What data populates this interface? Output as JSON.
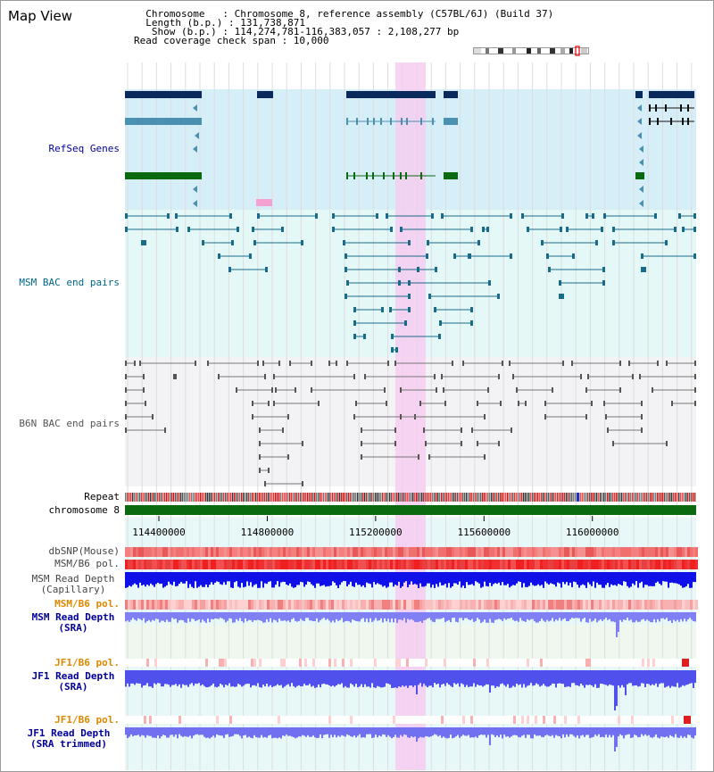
{
  "title": "Map View",
  "info": {
    "line1": "  Chromosome   : Chromosome 8, reference assembly (C57BL/6J) (Build 37)",
    "line2": "  Length (b.p.) : 131,738,871",
    "line3": "   Show (b.p.) : 114,274,781-116,383,057 : 2,108,277 bp",
    "line4": "Read coverage check span : 10,000"
  },
  "tracks": {
    "refseq": "RefSeq Genes",
    "msm_bac": "MSM BAC end pairs",
    "b6n_bac": "B6N BAC end pairs",
    "repeat": "Repeat",
    "chromosome": "chromosome 8",
    "dbsnp": "dbSNP(Mouse)",
    "msm_b6_pol": "MSM/B6 pol.",
    "msm_depth_cap_1": "MSM Read Depth",
    "msm_depth_cap_2": "(Capillary)",
    "msm_b6_pol2": "MSM/B6 pol.",
    "msm_depth_sra_1": "MSM Read Depth",
    "msm_depth_sra_2": "(SRA)",
    "jf1_pol1": "JF1/B6 pol.",
    "jf1_depth_sra_1": "JF1 Read Depth",
    "jf1_depth_sra_2": "(SRA)",
    "jf1_pol2": "JF1/B6 pol.",
    "jf1_depth_trim_1": "JF1 Read Depth",
    "jf1_depth_trim_2": "(SRA trimmed)"
  },
  "axis": {
    "ticks": [
      "114400000",
      "114800000",
      "115200000",
      "115600000",
      "116000000"
    ],
    "tick_values": [
      114400000,
      114800000,
      115200000,
      115600000,
      116000000
    ],
    "view_start": 114274781,
    "view_end": 116383057
  },
  "colors": {
    "refseq_bg": "#d6eef8",
    "msm_bg": "#e4f8f8",
    "b6n_bg": "#f3f3f6",
    "highlight": "#f4ccf0",
    "gene_dark": "#0a2a5e",
    "gene_mid": "#4a90b0",
    "gene_green": "#0a6a10",
    "msm_line": "#1a6a8a",
    "b6n_line": "#777777",
    "chrom": "#0a6a10",
    "label_blue": "#000099",
    "label_teal": "#006688",
    "label_gray": "#444444",
    "label_orange": "#dd8800"
  }
}
